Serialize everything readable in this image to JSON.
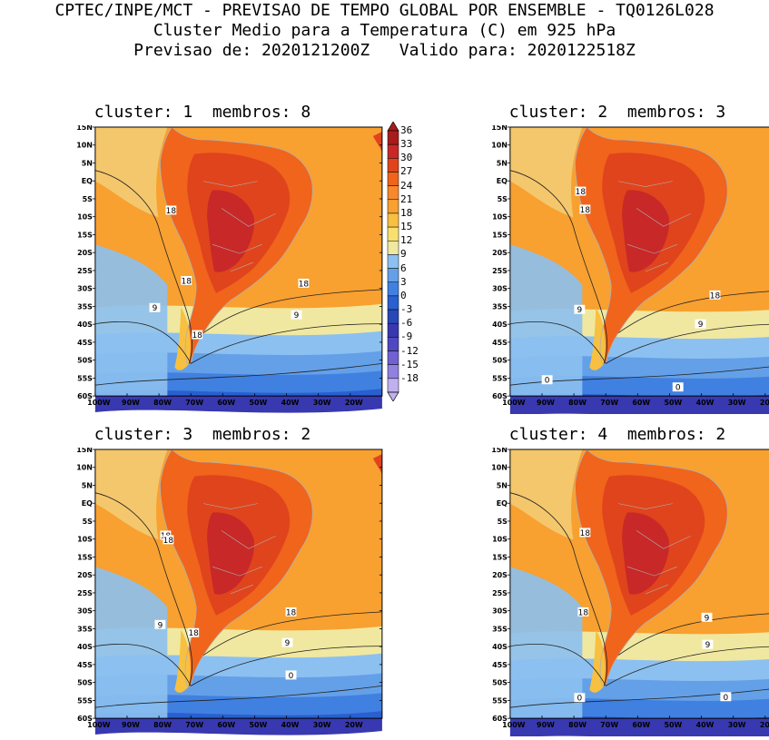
{
  "header": {
    "line1": "CPTEC/INPE/MCT - PREVISAO DE TEMPO GLOBAL POR ENSEMBLE - TQ0126L028",
    "line2": "Cluster Medio para a Temperatura (C) em 925 hPa",
    "line3": "Previsao de: 2020121200Z   Valido para: 2020122518Z"
  },
  "panels": [
    {
      "title": "cluster: 1  membros: 8",
      "contour_labels": [
        "18",
        "18",
        "18",
        "9",
        "9",
        "18"
      ]
    },
    {
      "title": "cluster: 2  membros: 3",
      "contour_labels": [
        "18",
        "18",
        "18",
        "9",
        "9",
        "0",
        "0"
      ]
    },
    {
      "title": "cluster: 3  membros: 2",
      "contour_labels": [
        "18",
        "18",
        "18",
        "9",
        "9",
        "18",
        "0"
      ]
    },
    {
      "title": "cluster: 4  membros: 2",
      "contour_labels": [
        "18",
        "18",
        "9",
        "9",
        "0",
        "0"
      ]
    }
  ],
  "lat_ticks": [
    "15N",
    "10N",
    "5N",
    "EQ",
    "5S",
    "10S",
    "15S",
    "20S",
    "25S",
    "30S",
    "35S",
    "40S",
    "45S",
    "50S",
    "55S",
    "60S"
  ],
  "lon_ticks": [
    "100W",
    "90W",
    "80W",
    "70W",
    "60W",
    "50W",
    "40W",
    "30W",
    "20W"
  ],
  "colorbar": {
    "labels": [
      "36",
      "33",
      "30",
      "27",
      "24",
      "21",
      "18",
      "15",
      "12",
      "9",
      "6",
      "3",
      "0",
      "-3",
      "-6",
      "-9",
      "-12",
      "-15",
      "-18"
    ],
    "colors": [
      "#a81c1c",
      "#c82828",
      "#e0441c",
      "#f0641c",
      "#f8882c",
      "#f8a030",
      "#f8c040",
      "#f8e070",
      "#f0e8a0",
      "#8cc0f0",
      "#64a0e8",
      "#4080e0",
      "#2860d0",
      "#2848b8",
      "#3838b0",
      "#5048c0",
      "#7060d0",
      "#9080e0",
      "#c0b0f0"
    ]
  }
}
